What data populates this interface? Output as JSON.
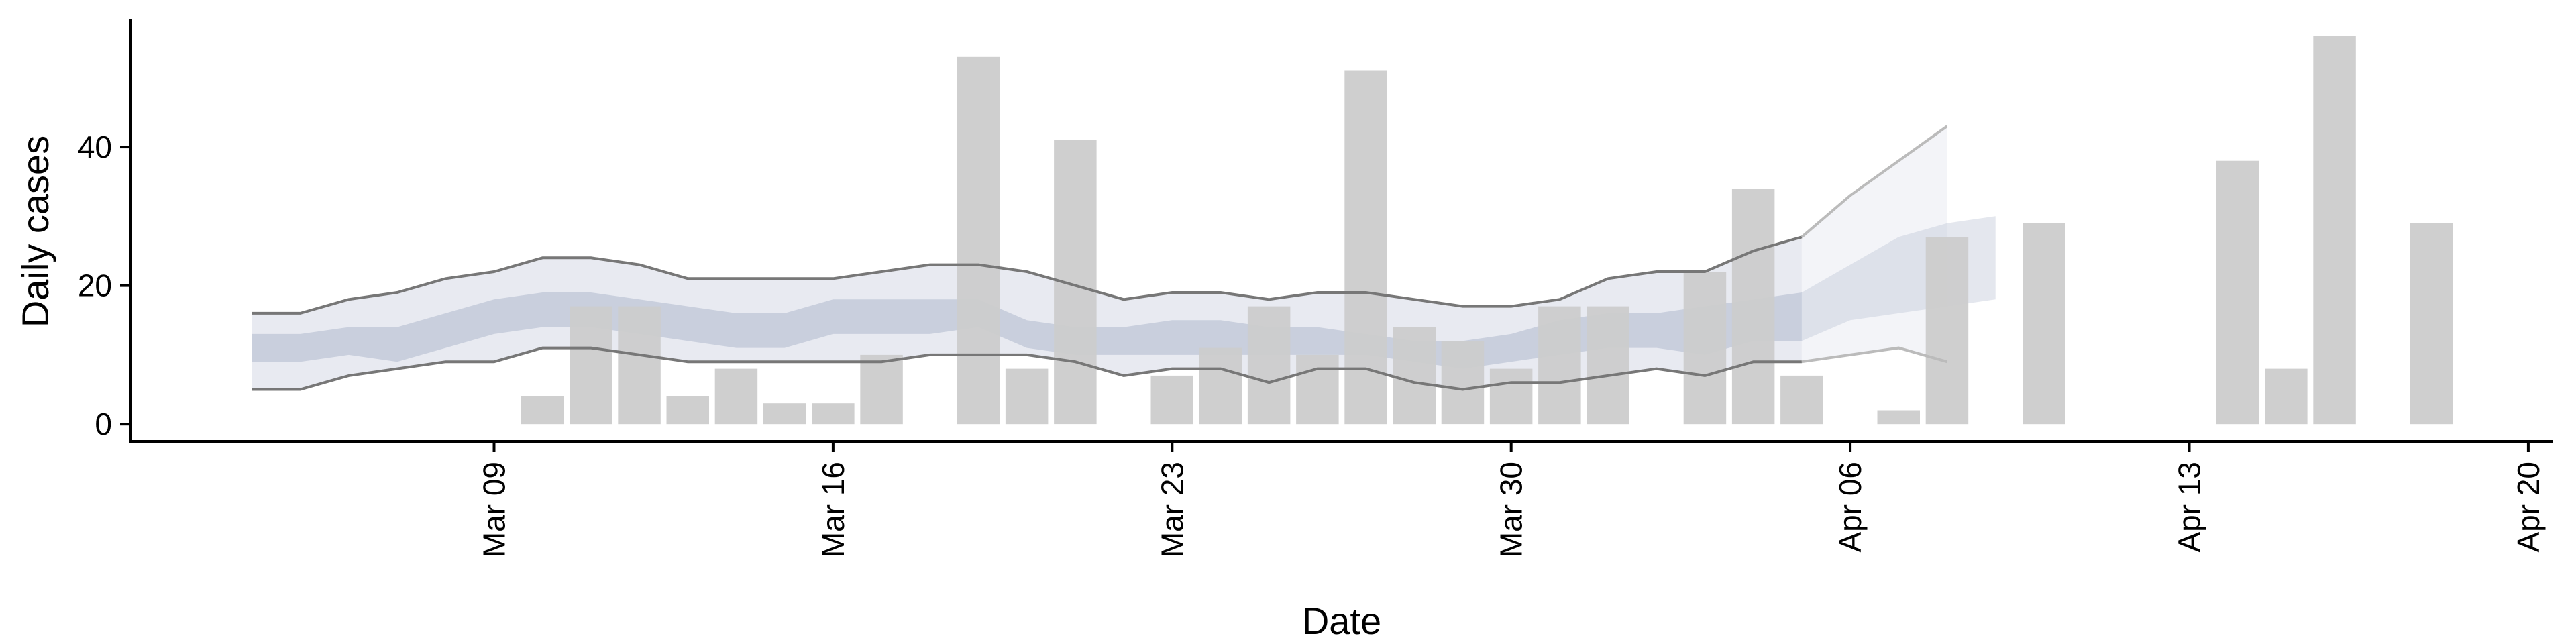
{
  "chart_data": {
    "type": "bar",
    "title": "",
    "xlabel": "Date",
    "ylabel": "Daily cases",
    "ylim": [
      -2.5,
      58.5
    ],
    "xlim": [
      "2020-03-01T12:00",
      "2020-04-20T12:00"
    ],
    "grid": false,
    "legend": "none",
    "x_ticks": [
      {
        "date": "2020-03-09",
        "label": "Mar 09"
      },
      {
        "date": "2020-03-16",
        "label": "Mar 16"
      },
      {
        "date": "2020-03-23",
        "label": "Mar 23"
      },
      {
        "date": "2020-03-30",
        "label": "Mar 30"
      },
      {
        "date": "2020-04-06",
        "label": "Apr 06"
      },
      {
        "date": "2020-04-13",
        "label": "Apr 13"
      },
      {
        "date": "2020-04-20",
        "label": "Apr 20"
      }
    ],
    "y_ticks": [
      0,
      20,
      40
    ],
    "bars": [
      {
        "date": "2020-03-10",
        "value": 4
      },
      {
        "date": "2020-03-11",
        "value": 17
      },
      {
        "date": "2020-03-12",
        "value": 17
      },
      {
        "date": "2020-03-13",
        "value": 4
      },
      {
        "date": "2020-03-14",
        "value": 8
      },
      {
        "date": "2020-03-15",
        "value": 3
      },
      {
        "date": "2020-03-16",
        "value": 3
      },
      {
        "date": "2020-03-17",
        "value": 10
      },
      {
        "date": "2020-03-19",
        "value": 53
      },
      {
        "date": "2020-03-20",
        "value": 8
      },
      {
        "date": "2020-03-21",
        "value": 41
      },
      {
        "date": "2020-03-23",
        "value": 7
      },
      {
        "date": "2020-03-24",
        "value": 11
      },
      {
        "date": "2020-03-25",
        "value": 17
      },
      {
        "date": "2020-03-26",
        "value": 10
      },
      {
        "date": "2020-03-27",
        "value": 51
      },
      {
        "date": "2020-03-28",
        "value": 14
      },
      {
        "date": "2020-03-29",
        "value": 12
      },
      {
        "date": "2020-03-30",
        "value": 8
      },
      {
        "date": "2020-03-31",
        "value": 17
      },
      {
        "date": "2020-04-01",
        "value": 17
      },
      {
        "date": "2020-04-03",
        "value": 22
      },
      {
        "date": "2020-04-04",
        "value": 34
      },
      {
        "date": "2020-04-05",
        "value": 7
      },
      {
        "date": "2020-04-07",
        "value": 2
      },
      {
        "date": "2020-04-08",
        "value": 27
      },
      {
        "date": "2020-04-10",
        "value": 29
      },
      {
        "date": "2020-04-14",
        "value": 38
      },
      {
        "date": "2020-04-15",
        "value": 8
      },
      {
        "date": "2020-04-16",
        "value": 56
      },
      {
        "date": "2020-04-18",
        "value": 29
      }
    ],
    "estimate": {
      "dates": [
        "2020-03-04",
        "2020-03-05",
        "2020-03-06",
        "2020-03-07",
        "2020-03-08",
        "2020-03-09",
        "2020-03-10",
        "2020-03-11",
        "2020-03-12",
        "2020-03-13",
        "2020-03-14",
        "2020-03-15",
        "2020-03-16",
        "2020-03-17",
        "2020-03-18",
        "2020-03-19",
        "2020-03-20",
        "2020-03-21",
        "2020-03-22",
        "2020-03-23",
        "2020-03-24",
        "2020-03-25",
        "2020-03-26",
        "2020-03-27",
        "2020-03-28",
        "2020-03-29",
        "2020-03-30",
        "2020-03-31",
        "2020-04-01",
        "2020-04-02",
        "2020-04-03",
        "2020-04-04",
        "2020-04-05",
        "2020-04-06",
        "2020-04-07",
        "2020-04-08",
        "2020-04-09"
      ],
      "outer_upper": [
        16,
        16,
        18,
        19,
        21,
        22,
        24,
        24,
        23,
        21,
        21,
        21,
        21,
        22,
        23,
        23,
        22,
        20,
        18,
        19,
        19,
        18,
        19,
        19,
        18,
        17,
        17,
        18,
        21,
        22,
        22,
        25,
        27,
        33,
        38,
        43,
        null
      ],
      "outer_lower": [
        5,
        5,
        7,
        8,
        9,
        9,
        11,
        11,
        10,
        9,
        9,
        9,
        9,
        9,
        10,
        10,
        10,
        9,
        7,
        8,
        8,
        6,
        8,
        8,
        6,
        5,
        6,
        6,
        7,
        8,
        7,
        9,
        9,
        10,
        11,
        9,
        null
      ],
      "inner_upper": [
        13,
        13,
        14,
        14,
        16,
        18,
        19,
        19,
        18,
        17,
        16,
        16,
        18,
        18,
        18,
        18,
        15,
        14,
        14,
        15,
        15,
        14,
        14,
        13,
        12,
        12,
        13,
        15,
        16,
        16,
        17,
        18,
        19,
        23,
        27,
        29,
        30
      ],
      "inner_lower": [
        9,
        9,
        10,
        9,
        11,
        13,
        14,
        14,
        13,
        12,
        11,
        11,
        13,
        13,
        13,
        14,
        11,
        10,
        10,
        10,
        10,
        10,
        10,
        10,
        9,
        8,
        9,
        10,
        11,
        11,
        10,
        12,
        12,
        15,
        16,
        17,
        18
      ],
      "forecast_from": "2020-04-05"
    },
    "colors": {
      "bar": "#cccccc",
      "outer_band": "#e8eaf1",
      "inner_band": "#c3cad9",
      "outer_line": "#777777",
      "forecast_band": "#f3f4f8",
      "forecast_line": "#bbbbbb",
      "axis": "#000000"
    }
  }
}
